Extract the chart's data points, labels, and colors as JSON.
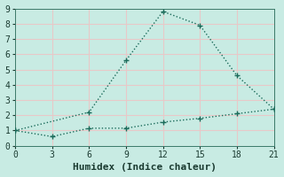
{
  "xlabel": "Humidex (Indice chaleur)",
  "background_color": "#c8ebe3",
  "grid_color": "#e8c8c8",
  "line_color": "#1a6b5a",
  "xlim": [
    0,
    21
  ],
  "ylim": [
    0,
    9
  ],
  "xticks": [
    0,
    3,
    6,
    9,
    12,
    15,
    18,
    21
  ],
  "yticks": [
    0,
    1,
    2,
    3,
    4,
    5,
    6,
    7,
    8,
    9
  ],
  "upper_x": [
    0,
    6,
    9,
    12,
    15,
    18,
    21
  ],
  "upper_y": [
    1.0,
    2.2,
    5.6,
    8.8,
    7.9,
    4.6,
    2.4
  ],
  "lower_x": [
    0,
    3,
    6,
    9,
    12,
    15,
    18,
    21
  ],
  "lower_y": [
    1.0,
    0.6,
    1.15,
    1.15,
    1.55,
    1.8,
    2.1,
    2.4
  ],
  "font_family": "monospace",
  "xlabel_fontsize": 8,
  "tick_fontsize": 7
}
